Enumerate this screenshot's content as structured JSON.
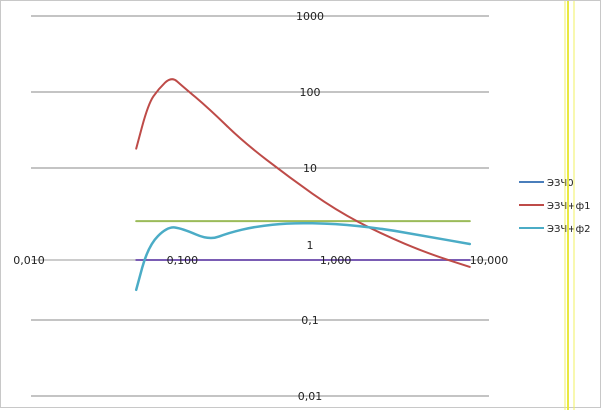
{
  "chart_data": {
    "type": "line",
    "title": "",
    "xlabel": "",
    "ylabel": "",
    "x_scale": "log",
    "y_scale": "log",
    "xlim": [
      0.01,
      10
    ],
    "ylim": [
      0.01,
      1000
    ],
    "x_ticks": [
      0.01,
      0.1,
      1,
      10
    ],
    "x_tick_labels": [
      "0,010",
      "0,100",
      "1,000",
      "10,000"
    ],
    "y_ticks": [
      1000,
      100,
      10,
      1,
      0.1,
      0.01
    ],
    "y_tick_labels": [
      "1000",
      "100",
      "10",
      "1",
      "0,1",
      "0,01"
    ],
    "grid": "horizontal major",
    "legend_position": "right",
    "series": [
      {
        "name": "ЭЗЧ0",
        "color": "#7a5cb4",
        "legend_color": "#4a7ebb",
        "x": [
          0.05,
          7.5
        ],
        "y": [
          1.0,
          1.0
        ]
      },
      {
        "name": "ЭЗЧ+ф1",
        "color": "#be4b48",
        "x": [
          0.05,
          0.06,
          0.07,
          0.085,
          0.1,
          0.15,
          0.25,
          0.5,
          1.0,
          2.0,
          4.0,
          7.5
        ],
        "y": [
          18,
          70,
          110,
          160,
          120,
          60,
          22,
          7.5,
          2.8,
          1.35,
          0.75,
          0.5
        ]
      },
      {
        "name": "ЭЗЧ+ф2",
        "color": "#4bacc6",
        "x": [
          0.05,
          0.06,
          0.08,
          0.1,
          0.15,
          0.2,
          0.3,
          0.5,
          1.0,
          2.0,
          4.0,
          7.5
        ],
        "y": [
          0.25,
          0.95,
          1.7,
          1.6,
          1.12,
          1.4,
          1.7,
          1.9,
          1.85,
          1.6,
          1.25,
          1.0
        ]
      },
      {
        "color": "#9bbb59",
        "x": [
          0.05,
          7.5
        ],
        "y": [
          2.0,
          2.0
        ]
      }
    ]
  }
}
